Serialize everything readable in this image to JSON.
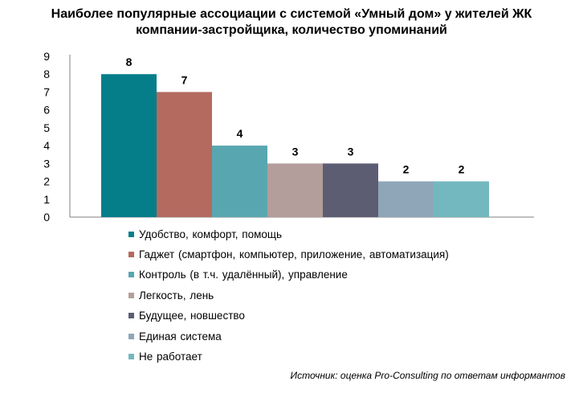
{
  "chart_data": {
    "type": "bar",
    "title_lines": [
      "Наиболее популярные ассоциации с системой «Умный дом» у жителей ЖК",
      "компании-застройщика, количество упоминаний"
    ],
    "categories": [
      "Удобство, комфорт, помощь",
      "Гаджет (смартфон, компьютер, приложение, автоматизация)",
      "Контроль (в т.ч. удалённый), управление",
      "Легкость, лень",
      "Будущее, новшество",
      "Единая система",
      "Не работает"
    ],
    "values": [
      8,
      7,
      4,
      3,
      3,
      2,
      2
    ],
    "colors": [
      "#057e8a",
      "#b46a5f",
      "#58a7b0",
      "#b49e9b",
      "#5c5d73",
      "#8ea6b7",
      "#73b8bf"
    ],
    "ylim": [
      0,
      9
    ],
    "yticks": [
      "0",
      "1",
      "2",
      "3",
      "4",
      "5",
      "6",
      "7",
      "8",
      "9"
    ],
    "xlabel": "",
    "ylabel": "",
    "grid": false,
    "legend_position": "bottom",
    "data_labels": true
  },
  "source": "Источник: оценка Pro-Consulting по ответам информантов"
}
